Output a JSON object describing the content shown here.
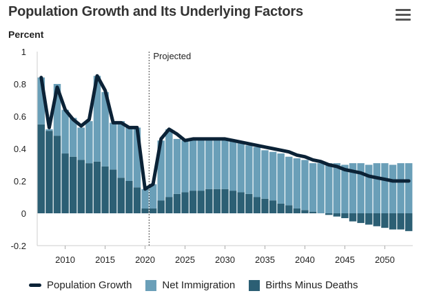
{
  "header": {
    "title": "Population Growth and Its Underlying Factors",
    "unit": "Percent",
    "menu_icon": "hamburger-menu-icon"
  },
  "chart_data": {
    "type": "bar",
    "ylabel": "Percent",
    "ylim": [
      -0.2,
      1
    ],
    "yticks": [
      "1",
      "0.8",
      "0.6",
      "0.4",
      "0.2",
      "0",
      "-0.2"
    ],
    "xlim": [
      2006.5,
      2053.5
    ],
    "xticks": [
      "2010",
      "2015",
      "2020",
      "2025",
      "2030",
      "2035",
      "2040",
      "2045",
      "2050"
    ],
    "projection_start": 2020.5,
    "projection_label": "Projected",
    "x": [
      2007,
      2008,
      2009,
      2010,
      2011,
      2012,
      2013,
      2014,
      2015,
      2016,
      2017,
      2018,
      2019,
      2020,
      2021,
      2022,
      2023,
      2024,
      2025,
      2026,
      2027,
      2028,
      2029,
      2030,
      2031,
      2032,
      2033,
      2034,
      2035,
      2036,
      2037,
      2038,
      2039,
      2040,
      2041,
      2042,
      2043,
      2044,
      2045,
      2046,
      2047,
      2048,
      2049,
      2050,
      2051,
      2052,
      2053
    ],
    "series": [
      {
        "name": "Births Minus Deaths",
        "color": "#2c5f74",
        "values": [
          0.55,
          0.51,
          0.48,
          0.37,
          0.35,
          0.33,
          0.31,
          0.32,
          0.29,
          0.27,
          0.22,
          0.2,
          0.16,
          0.03,
          0.03,
          0.08,
          0.1,
          0.12,
          0.13,
          0.14,
          0.14,
          0.15,
          0.15,
          0.15,
          0.14,
          0.13,
          0.12,
          0.1,
          0.09,
          0.08,
          0.06,
          0.05,
          0.03,
          0.02,
          0.01,
          0,
          -0.01,
          -0.02,
          -0.03,
          -0.05,
          -0.06,
          -0.07,
          -0.08,
          -0.09,
          -0.1,
          -0.1,
          -0.11
        ]
      },
      {
        "name": "Net Immigration",
        "color": "#6a9fb8",
        "values": [
          0.29,
          0.01,
          0.32,
          0.27,
          0.24,
          0.2,
          0.26,
          0.53,
          0.46,
          0.29,
          0.35,
          0.34,
          0.37,
          0.12,
          0.15,
          0.37,
          0.42,
          0.34,
          0.32,
          0.32,
          0.32,
          0.31,
          0.31,
          0.31,
          0.31,
          0.31,
          0.3,
          0.31,
          0.3,
          0.3,
          0.31,
          0.3,
          0.31,
          0.31,
          0.3,
          0.31,
          0.31,
          0.31,
          0.3,
          0.31,
          0.31,
          0.3,
          0.31,
          0.31,
          0.3,
          0.31,
          0.31
        ]
      }
    ],
    "line": {
      "name": "Population Growth",
      "color": "#0b2236",
      "values": [
        0.84,
        0.53,
        0.78,
        0.64,
        0.58,
        0.54,
        0.58,
        0.85,
        0.76,
        0.56,
        0.56,
        0.53,
        0.53,
        0.15,
        0.18,
        0.46,
        0.52,
        0.49,
        0.45,
        0.46,
        0.46,
        0.46,
        0.46,
        0.46,
        0.45,
        0.44,
        0.43,
        0.42,
        0.41,
        0.4,
        0.39,
        0.38,
        0.36,
        0.35,
        0.33,
        0.32,
        0.3,
        0.29,
        0.27,
        0.26,
        0.25,
        0.23,
        0.22,
        0.21,
        0.2,
        0.2,
        0.2
      ]
    }
  },
  "legend": [
    {
      "label": "Population Growth",
      "type": "line",
      "color": "#0b2236"
    },
    {
      "label": "Net Immigration",
      "type": "box",
      "color": "#6a9fb8"
    },
    {
      "label": "Births Minus Deaths",
      "type": "box",
      "color": "#2c5f74"
    }
  ]
}
